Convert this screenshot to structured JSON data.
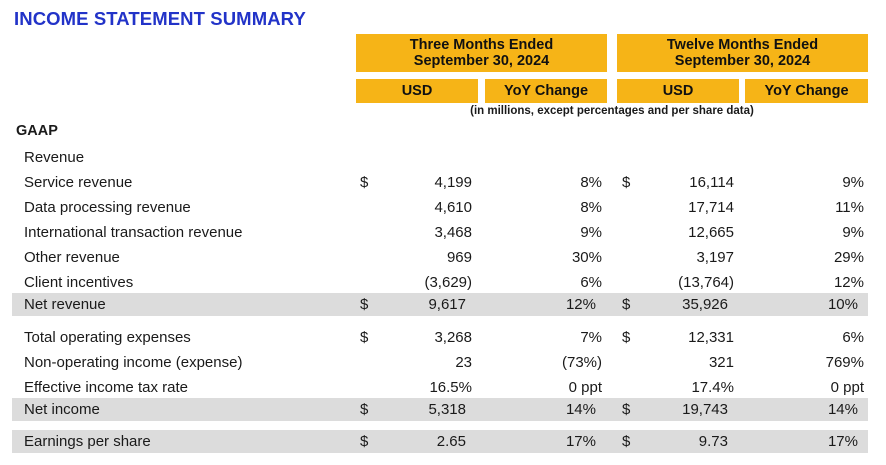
{
  "title": "INCOME STATEMENT SUMMARY",
  "colors": {
    "header_fill": "#f6b417",
    "title": "#2233c8",
    "row_shade": "#dcdcdc"
  },
  "periods": [
    {
      "line1": "Three Months Ended",
      "line2": "September 30, 2024",
      "col_usd": "USD",
      "col_yoy": "YoY Change"
    },
    {
      "line1": "Twelve Months Ended",
      "line2": "September 30, 2024",
      "col_usd": "USD",
      "col_yoy": "YoY Change"
    }
  ],
  "units_note": "(in millions, except percentages and per share data)",
  "section": "GAAP",
  "revenue_header": "Revenue",
  "rows": [
    {
      "label": "Service revenue",
      "cur1": "$",
      "v1": "4,199",
      "c1": "8%",
      "cur2": "$",
      "v2": "16,114",
      "c2": "9%"
    },
    {
      "label": "Data processing revenue",
      "cur1": "",
      "v1": "4,610",
      "c1": "8%",
      "cur2": "",
      "v2": "17,714",
      "c2": "11%"
    },
    {
      "label": "International transaction revenue",
      "cur1": "",
      "v1": "3,468",
      "c1": "9%",
      "cur2": "",
      "v2": "12,665",
      "c2": "9%"
    },
    {
      "label": "Other revenue",
      "cur1": "",
      "v1": "969",
      "c1": "30%",
      "cur2": "",
      "v2": "3,197",
      "c2": "29%"
    },
    {
      "label": "Client incentives",
      "cur1": "",
      "v1": "(3,629)",
      "c1": "6%",
      "cur2": "",
      "v2": "(13,764)",
      "c2": "12%"
    },
    {
      "label": "Net revenue",
      "cur1": "$",
      "v1": "9,617",
      "c1": "12%",
      "cur2": "$",
      "v2": "35,926",
      "c2": "10%"
    },
    {
      "label": "Total operating expenses",
      "cur1": "$",
      "v1": "3,268",
      "c1": "7%",
      "cur2": "$",
      "v2": "12,331",
      "c2": "6%"
    },
    {
      "label": "Non-operating income (expense)",
      "cur1": "",
      "v1": "23",
      "c1": "(73%)",
      "cur2": "",
      "v2": "321",
      "c2": "769%"
    },
    {
      "label": "Effective income tax rate",
      "cur1": "",
      "v1": "16.5%",
      "c1": "0 ppt",
      "cur2": "",
      "v2": "17.4%",
      "c2": "0 ppt"
    },
    {
      "label": "Net income",
      "cur1": "$",
      "v1": "5,318",
      "c1": "14%",
      "cur2": "$",
      "v2": "19,743",
      "c2": "14%"
    },
    {
      "label": "Earnings per share",
      "cur1": "$",
      "v1": "2.65",
      "c1": "17%",
      "cur2": "$",
      "v2": "9.73",
      "c2": "17%"
    }
  ]
}
